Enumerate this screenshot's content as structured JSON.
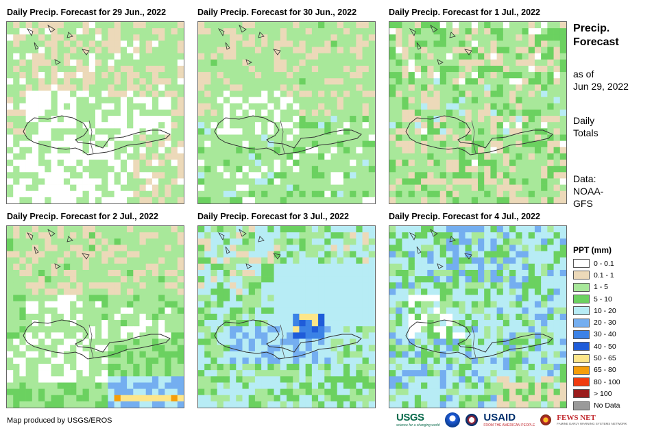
{
  "panels": [
    {
      "title": "Daily Precip. Forecast for 29 Jun., 2022",
      "day": 0
    },
    {
      "title": "Daily Precip. Forecast for 30 Jun., 2022",
      "day": 1
    },
    {
      "title": "Daily Precip. Forecast for 1 Jul., 2022",
      "day": 2
    },
    {
      "title": "Daily Precip. Forecast for 2 Jul., 2022",
      "day": 3
    },
    {
      "title": "Daily Precip. Forecast for 3 Jul., 2022",
      "day": 4
    },
    {
      "title": "Daily Precip. Forecast for 4 Jul., 2022",
      "day": 5
    }
  ],
  "sidebar": {
    "heading_line1": "Precip.",
    "heading_line2": "Forecast",
    "asof_line1": "as of",
    "asof_line2": "Jun 29, 2022",
    "totals_line1": "Daily",
    "totals_line2": "Totals",
    "data_line1": "Data:",
    "data_line2": "NOAA-",
    "data_line3": "GFS"
  },
  "legend": {
    "title": "PPT (mm)",
    "items": [
      {
        "label": "0 - 0.1",
        "color": "#ffffff"
      },
      {
        "label": "0.1 - 1",
        "color": "#ecd9b9"
      },
      {
        "label": "1 - 5",
        "color": "#a8e89a"
      },
      {
        "label": "5 - 10",
        "color": "#6bd160"
      },
      {
        "label": "10 - 20",
        "color": "#b7ecf5"
      },
      {
        "label": "20 - 30",
        "color": "#74aef0"
      },
      {
        "label": "30 - 40",
        "color": "#3b82e6"
      },
      {
        "label": "40 - 50",
        "color": "#1f5cd9"
      },
      {
        "label": "50 - 65",
        "color": "#fde68a"
      },
      {
        "label": "65 - 80",
        "color": "#f59e0b"
      },
      {
        "label": "80 - 100",
        "color": "#f03b0f"
      },
      {
        "label": "> 100",
        "color": "#9b1c1c"
      },
      {
        "label": "No Data",
        "color": "#9a9a9a"
      }
    ]
  },
  "credit": "Map produced by USGS/EROS",
  "logos": {
    "usgs": "USGS",
    "usgs_tagline": "science for a changing world",
    "usaid": "USAID",
    "usaid_tagline": "FROM THE AMERICAN PEOPLE",
    "fews": "FEWS NET",
    "fews_tagline": "FAMINE EARLY WARNING SYSTEMS NETWORK"
  }
}
